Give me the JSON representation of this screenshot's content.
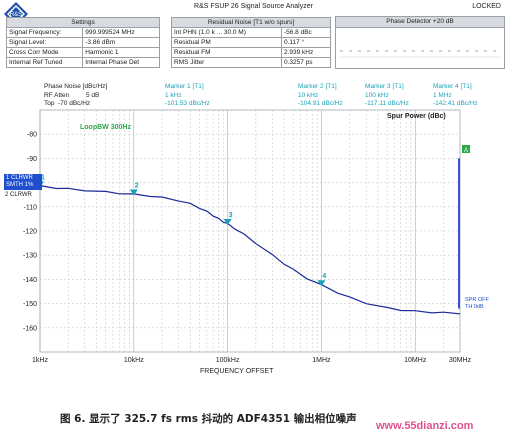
{
  "window": {
    "title": "R&S FSUP 26 Signal Source Analyzer",
    "status": "LOCKED",
    "logo_text": "R&S"
  },
  "settings": {
    "header": "Settings",
    "rows": [
      {
        "label": "Signal Frequency:",
        "value": "999.999524 MHz"
      },
      {
        "label": "Signal Level:",
        "value": "-3.86 dBm"
      },
      {
        "label": "Cross Corr Mode",
        "value": "Harmonic 1"
      },
      {
        "label": "Internal Ref Tuned",
        "value": "Internal Phase Det"
      }
    ]
  },
  "residual": {
    "header": "Residual Noise [T1 w/o spurs]",
    "rows": [
      {
        "label": "Int PHN (1.0 k ... 30.0 M)",
        "value": "-56.8 dBc"
      },
      {
        "label": "Residual PM",
        "value": "0.117 °"
      },
      {
        "label": "Residual FM",
        "value": "2.939 kHz"
      },
      {
        "label": "RMS Jitter",
        "value": "0.3257 ps"
      }
    ]
  },
  "phase_detector": {
    "header": "Phase Detector +20 dB"
  },
  "meas_info": {
    "phase_noise_label": "Phase Noise [dBc/Hz]",
    "rf_atten_label": "RF Atten",
    "rf_atten_value": "5 dB",
    "top_label": "Top",
    "top_value": "-70 dBc/Hz"
  },
  "markers": [
    {
      "name": "Marker 1 [T1]",
      "freq": "1 kHz",
      "level": "-101.53 dBc/Hz"
    },
    {
      "name": "Marker 2 [T1]",
      "freq": "10 kHz",
      "level": "-104.91 dBc/Hz"
    },
    {
      "name": "Marker 3 [T1]",
      "freq": "100 kHz",
      "level": "-117.11 dBc/Hz"
    },
    {
      "name": "Marker 4 [T1]",
      "freq": "1 MHz",
      "level": "-142.41 dBc/Hz"
    }
  ],
  "trace_labels": {
    "trace1_line1": "1 CLRWR",
    "trace1_line2": "SMTH 1%",
    "trace2": "2 CLRWR",
    "loop_bw": "LoopBW 300Hz",
    "spur_power": "Spur Power (dBc)",
    "spr_off_line1": "SPR OFF",
    "spr_off_line2": "TH 0dB",
    "flag_a": "A"
  },
  "marker_numbers": [
    "1",
    "2",
    "3",
    "4"
  ],
  "xlabel": "FREQUENCY OFFSET",
  "caption": "图 6. 显示了 325.7 fs rms 抖动的 ADF4351 输出相位噪声",
  "watermark": "www.55dianzi.com",
  "chart_data": {
    "type": "line",
    "xscale": "log",
    "x_tick_labels": [
      "1kHz",
      "10kHz",
      "100kHz",
      "1MHz",
      "10MHz",
      "30MHz"
    ],
    "x_tick_values": [
      1000,
      10000,
      100000,
      1000000,
      10000000,
      30000000
    ],
    "xlim": [
      1000,
      30000000
    ],
    "y_tick_labels": [
      "-80",
      "-90",
      "-100",
      "-110",
      "-120",
      "-130",
      "-140",
      "-150",
      "-160"
    ],
    "ylim": [
      -170,
      -70
    ],
    "grid": true,
    "series": [
      {
        "color": "#1a2a9a",
        "x": [
          1000,
          1500,
          2000,
          3000,
          5000,
          7000,
          10000,
          15000,
          20000,
          30000,
          40000,
          50000,
          60000,
          70000,
          80000,
          90000,
          100000,
          120000,
          150000,
          200000,
          300000,
          400000,
          500000,
          700000,
          1000000,
          1500000,
          2000000,
          3000000,
          5000000,
          7000000,
          10000000,
          15000000,
          20000000,
          30000000
        ],
        "y": [
          -101.5,
          -102.2,
          -102.6,
          -103.2,
          -103.9,
          -104.4,
          -104.9,
          -105.5,
          -106.2,
          -107.4,
          -108.8,
          -110.4,
          -112.0,
          -113.6,
          -115.0,
          -116.1,
          -117.1,
          -119.0,
          -121.5,
          -125.0,
          -130.0,
          -133.5,
          -136.0,
          -139.5,
          -142.4,
          -145.5,
          -147.5,
          -149.8,
          -151.8,
          -152.6,
          -153.2,
          -153.6,
          -153.8,
          -154.0
        ]
      }
    ],
    "markers": [
      {
        "label": "1",
        "x": 1000,
        "y": -101.53
      },
      {
        "label": "2",
        "x": 10000,
        "y": -104.91
      },
      {
        "label": "3",
        "x": 100000,
        "y": -117.11
      },
      {
        "label": "4",
        "x": 1000000,
        "y": -142.41
      }
    ],
    "spur_line": {
      "x": 30000000,
      "y_top": -90,
      "y_bottom": -152
    }
  },
  "colors": {
    "trace": "#1a2a9a",
    "marker": "#1aa3b8",
    "loop_bw": "#2aa94a",
    "spur": "#3a4fd8",
    "flag": "#2aa94a",
    "grid": "#c8ccd0"
  }
}
